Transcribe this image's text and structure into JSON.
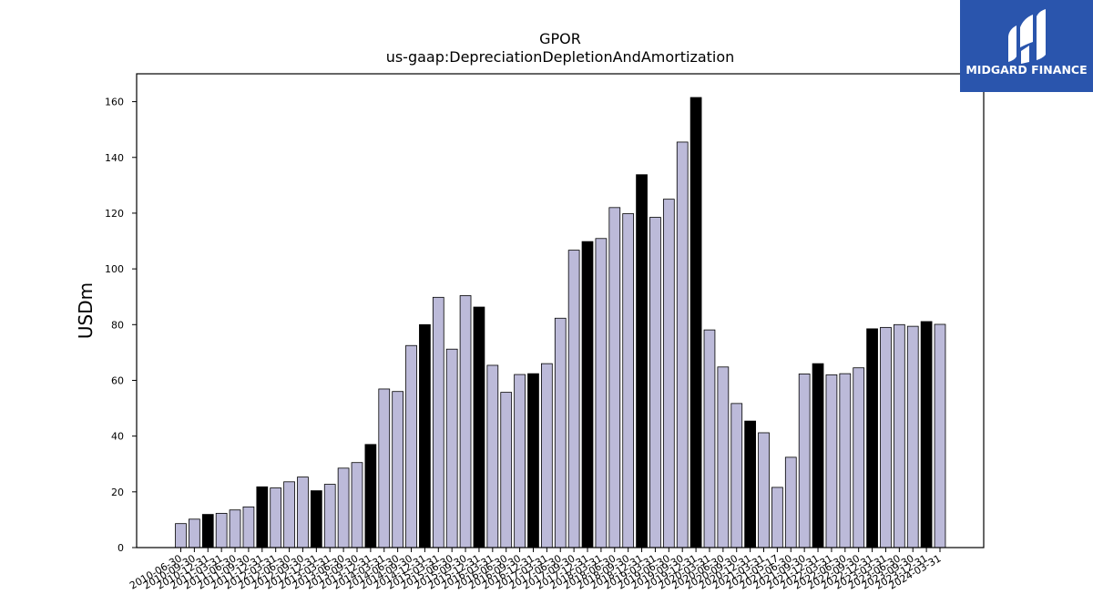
{
  "brand": {
    "name": "MIDGARD FINANCE",
    "bg_color": "#2a55ad",
    "fg_color": "#ffffff",
    "icon": "midgard-logo-icon"
  },
  "chart_data": {
    "type": "bar",
    "title": "GPOR",
    "subtitle": "us-gaap:DepreciationDepletionAndAmortization",
    "xlabel": "",
    "ylabel": "USDm",
    "ylim": [
      0,
      170
    ],
    "yticks": [
      0,
      20,
      40,
      60,
      80,
      100,
      120,
      140,
      160
    ],
    "grid": false,
    "colors": {
      "quarter": "#bcbad9",
      "annual": "#000000",
      "edge": "#000000"
    },
    "x_tick_labels": [
      "2010-06-30",
      "2010-09-30",
      "2010-12-31",
      "2011-03-31",
      "2011-06-30",
      "2011-09-30",
      "2011-12-31",
      "2012-03-31",
      "2012-06-30",
      "2012-09-30",
      "2012-12-31",
      "2013-03-31",
      "2013-06-30",
      "2013-09-30",
      "2013-12-31",
      "2014-03-31",
      "2014-06-30",
      "2014-09-30",
      "2014-12-31",
      "2015-03-31",
      "2015-06-30",
      "2015-09-30",
      "2015-12-31",
      "2016-03-31",
      "2016-06-30",
      "2016-09-30",
      "2016-12-31",
      "2017-03-31",
      "2017-06-30",
      "2017-09-30",
      "2017-12-31",
      "2018-03-31",
      "2018-06-30",
      "2018-09-30",
      "2018-12-31",
      "2019-03-31",
      "2019-06-30",
      "2019-09-30",
      "2019-12-31",
      "2020-03-31",
      "2020-06-30",
      "2020-09-30",
      "2020-12-31",
      "2021-03-31",
      "2021-05-17",
      "2021-06-30",
      "2021-09-30",
      "2021-12-31",
      "2022-03-31",
      "2022-06-30",
      "2022-09-30",
      "2022-12-31",
      "2023-03-31",
      "2023-06-30",
      "2023-09-30",
      "2023-12-31",
      "2024-03-31"
    ],
    "values": [
      8.6,
      10.2,
      11.9,
      12.3,
      13.5,
      14.6,
      21.8,
      21.4,
      23.6,
      25.3,
      20.4,
      22.7,
      28.5,
      30.5,
      37.0,
      56.9,
      56.0,
      72.5,
      80.0,
      89.8,
      71.2,
      90.4,
      86.3,
      65.4,
      55.7,
      62.1,
      62.4,
      66.0,
      82.3,
      106.7,
      109.8,
      110.9,
      122.0,
      119.8,
      133.8,
      118.5,
      125.0,
      145.5,
      161.5,
      78.1,
      64.8,
      51.7,
      45.4,
      41.2,
      21.6,
      32.4,
      62.3,
      66.0,
      62.0,
      62.4,
      64.5,
      78.5,
      79.0,
      80.0,
      79.4,
      81.1,
      80.1
    ],
    "is_annual": [
      false,
      false,
      true,
      false,
      false,
      false,
      true,
      false,
      false,
      false,
      true,
      false,
      false,
      false,
      true,
      false,
      false,
      false,
      true,
      false,
      false,
      false,
      true,
      false,
      false,
      false,
      true,
      false,
      false,
      false,
      true,
      false,
      false,
      false,
      true,
      false,
      false,
      false,
      true,
      false,
      false,
      false,
      true,
      false,
      false,
      false,
      false,
      true,
      false,
      false,
      false,
      true,
      false,
      false,
      false,
      true,
      false
    ]
  }
}
